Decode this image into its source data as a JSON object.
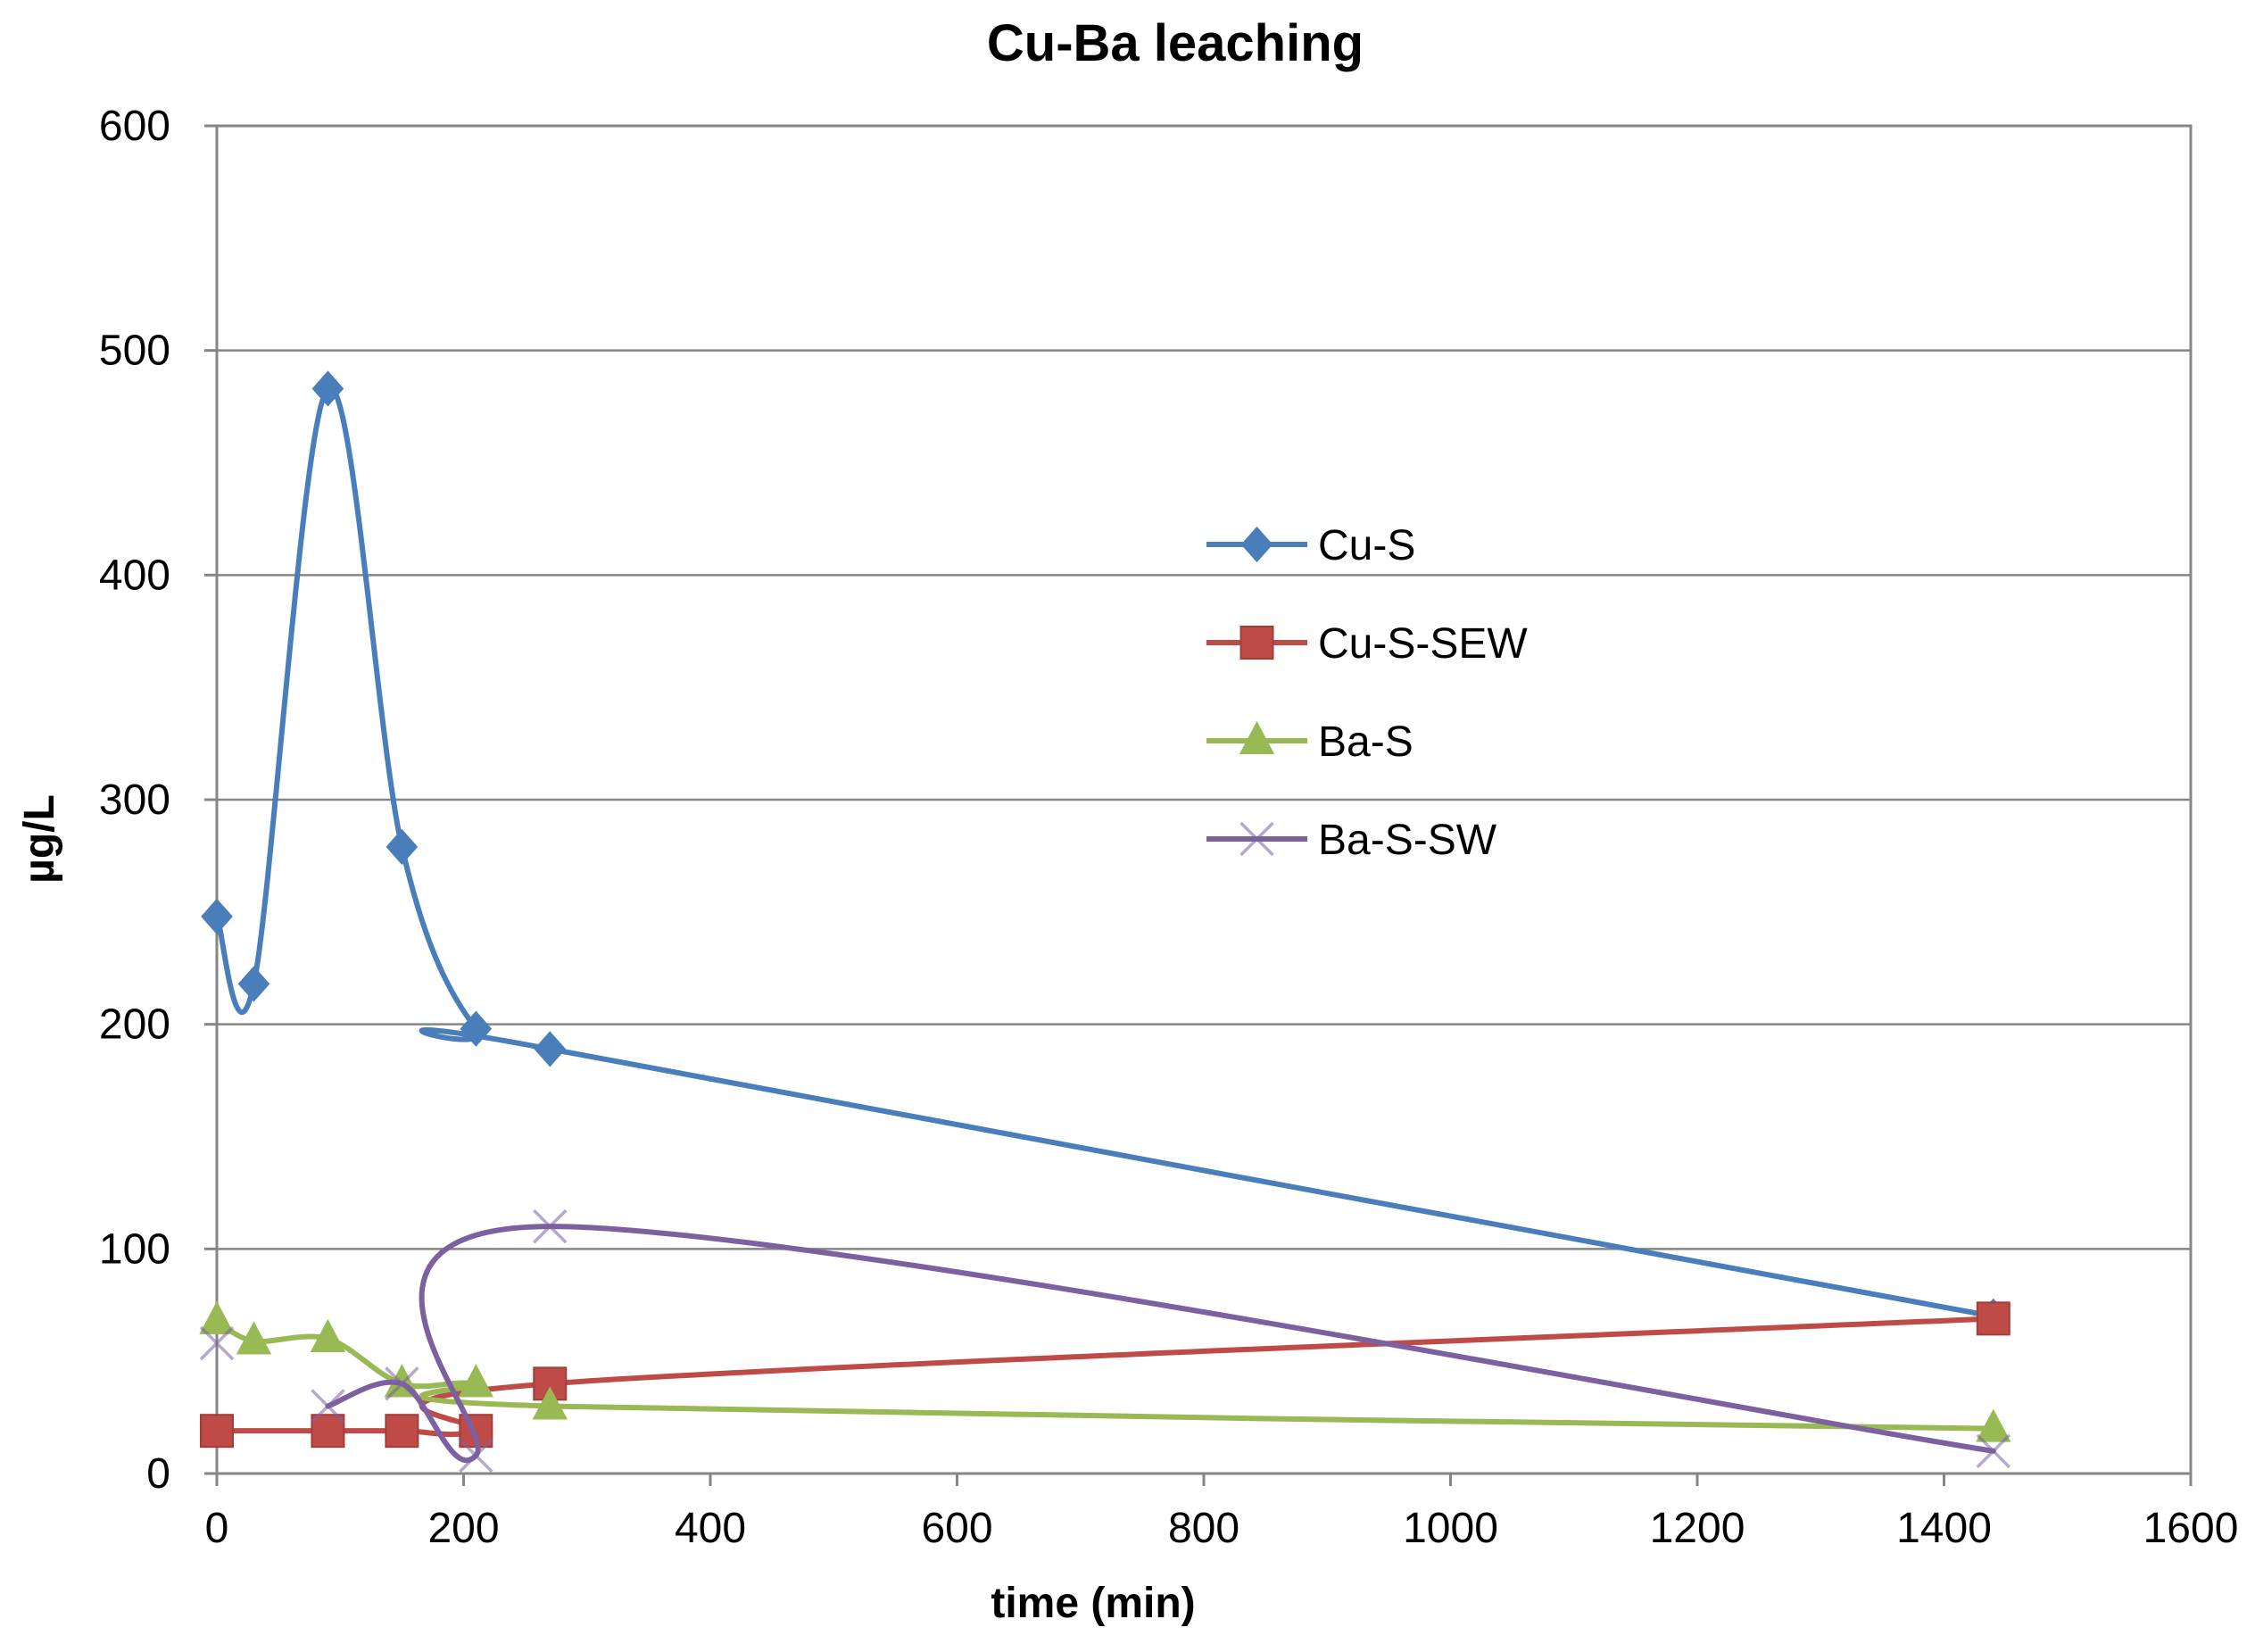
{
  "chart_data": {
    "type": "line",
    "title": "Cu-Ba leaching",
    "xlabel": "time (min)",
    "ylabel": "µg/L",
    "xlim": [
      0,
      1600
    ],
    "ylim": [
      0,
      600
    ],
    "xticks": [
      0,
      200,
      400,
      600,
      800,
      1000,
      1200,
      1400,
      1600
    ],
    "yticks": [
      0,
      100,
      200,
      300,
      400,
      500,
      600
    ],
    "grid": "horizontal",
    "legend_position": "center-right",
    "smooth": true,
    "series": [
      {
        "name": "Cu-S",
        "color": "#4a7ebb",
        "marker": "diamond",
        "x": [
          0,
          30,
          90,
          150,
          210,
          270,
          1440
        ],
        "y": [
          248,
          218,
          483,
          279,
          198,
          189,
          70
        ]
      },
      {
        "name": "Cu-S-SEW",
        "color": "#be4b48",
        "marker": "square",
        "x": [
          0,
          90,
          150,
          210,
          270,
          1440
        ],
        "y": [
          19,
          19,
          19,
          19,
          40,
          69
        ]
      },
      {
        "name": "Ba-S",
        "color": "#98b954",
        "marker": "triangle",
        "x": [
          0,
          30,
          90,
          150,
          210,
          270,
          1440
        ],
        "y": [
          68,
          59,
          60,
          40,
          40,
          30,
          20
        ]
      },
      {
        "name": "Ba-S-SW",
        "color": "#7d60a0",
        "marker": "x",
        "x": [
          0,
          90,
          150,
          210,
          270,
          1440
        ],
        "y": [
          58,
          30,
          40,
          8,
          110,
          10
        ],
        "line_starts_at_index": 1
      }
    ]
  }
}
